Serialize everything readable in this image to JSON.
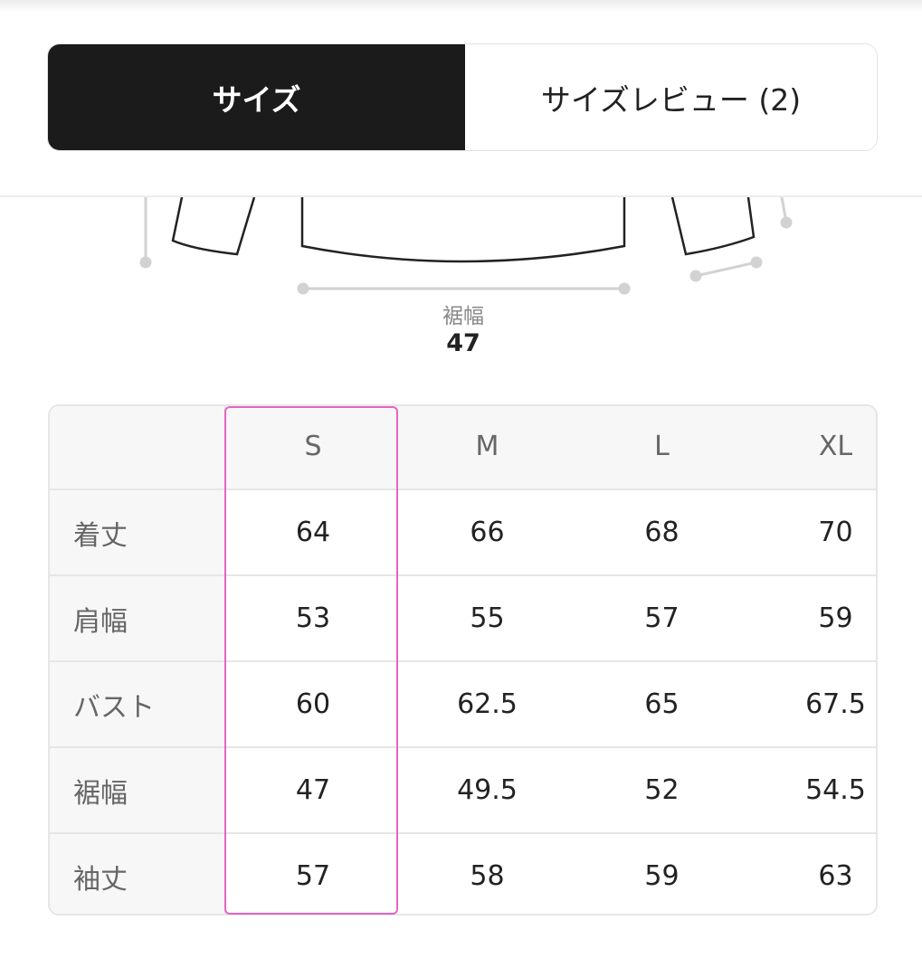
{
  "tabs": [
    {
      "label": "サイズ",
      "active": true
    },
    {
      "label": "サイズレビュー (2)",
      "active": false
    }
  ],
  "diagram": {
    "measure_label": "裾幅",
    "measure_value": "47"
  },
  "size_table": {
    "sizes": [
      "S",
      "M",
      "L",
      "XL"
    ],
    "selected_size": "S",
    "highlight_color": "#e466c4",
    "rows": [
      {
        "label": "着丈",
        "values": [
          "64",
          "66",
          "68",
          "70"
        ]
      },
      {
        "label": "肩幅",
        "values": [
          "53",
          "55",
          "57",
          "59"
        ]
      },
      {
        "label": "バスト",
        "values": [
          "60",
          "62.5",
          "65",
          "67.5"
        ]
      },
      {
        "label": "裾幅",
        "values": [
          "47",
          "49.5",
          "52",
          "54.5"
        ]
      },
      {
        "label": "袖丈",
        "values": [
          "57",
          "58",
          "59",
          "63"
        ]
      }
    ]
  }
}
